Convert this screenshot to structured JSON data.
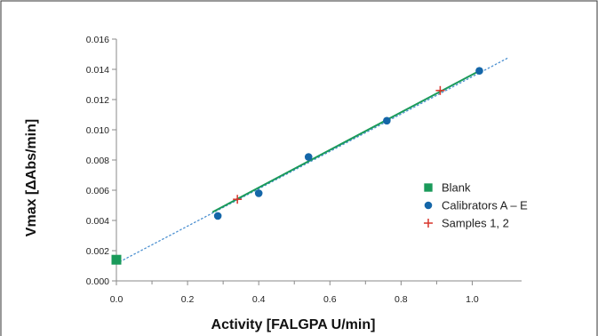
{
  "chart_data": {
    "type": "scatter",
    "title": "",
    "xlabel": "Activity [FALGPA U/min]",
    "ylabel": "Vmax [ΔAbs/min]",
    "xlim": [
      0.0,
      1.1
    ],
    "ylim": [
      0.0,
      0.016
    ],
    "x_ticks": [
      0.0,
      0.2,
      0.4,
      0.6,
      0.8,
      1.0
    ],
    "x_tick_labels": [
      "0.0",
      "0.2",
      "0.4",
      "0.6",
      "0.8",
      "1.0"
    ],
    "x_minor_ticks": [
      0.1,
      0.3,
      0.5,
      0.7,
      0.9
    ],
    "y_ticks": [
      0.0,
      0.002,
      0.004,
      0.006,
      0.008,
      0.01,
      0.012,
      0.014,
      0.016
    ],
    "y_tick_labels": [
      "0.000",
      "0.002",
      "0.004",
      "0.006",
      "0.008",
      "0.010",
      "0.012",
      "0.014",
      "0.016"
    ],
    "grid": false,
    "legend_position": "right",
    "series": [
      {
        "name": "Blank",
        "marker": "square",
        "color": "#1a9a5a",
        "x": [
          0.0
        ],
        "y": [
          0.0014
        ]
      },
      {
        "name": "Calibrators A – E",
        "marker": "circle",
        "color": "#1466a8",
        "x": [
          0.285,
          0.4,
          0.54,
          0.76,
          1.02
        ],
        "y": [
          0.0043,
          0.0058,
          0.0082,
          0.0106,
          0.0139
        ]
      },
      {
        "name": "Samples 1, 2",
        "marker": "plus",
        "color": "#d9342b",
        "x": [
          0.34,
          0.91
        ],
        "y": [
          0.0054,
          0.0126
        ]
      }
    ],
    "fit_line": {
      "color": "#1a9a5a",
      "x": [
        0.27,
        1.02
      ],
      "y": [
        0.00455,
        0.0139
      ]
    },
    "extrapolation_line": {
      "color": "#4a8fd0",
      "x": [
        0.0,
        1.1
      ],
      "y": [
        0.00115,
        0.01475
      ]
    }
  }
}
